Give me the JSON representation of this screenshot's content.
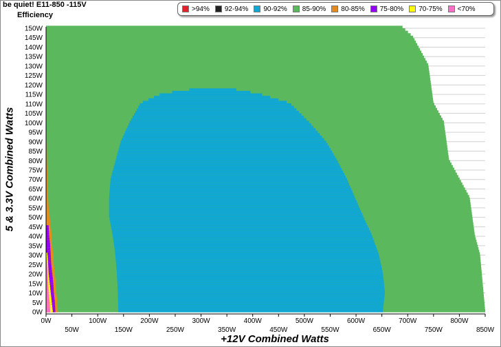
{
  "title": "be quiet! E11-850 -115V",
  "subtitle": "Efficiency",
  "chart_data": {
    "type": "heatmap",
    "xlabel": "+12V Combined Watts",
    "ylabel": "5 & 3.3V Combined Watts",
    "xlim": [
      0,
      850
    ],
    "ylim": [
      0,
      150
    ],
    "x_ticks": [
      "0W",
      "50W",
      "100W",
      "150W",
      "200W",
      "250W",
      "300W",
      "350W",
      "400W",
      "450W",
      "500W",
      "550W",
      "600W",
      "650W",
      "700W",
      "750W",
      "800W",
      "850W"
    ],
    "y_ticks": [
      "0W",
      "5W",
      "10W",
      "15W",
      "20W",
      "25W",
      "30W",
      "35W",
      "40W",
      "45W",
      "50W",
      "55W",
      "60W",
      "65W",
      "70W",
      "75W",
      "80W",
      "85W",
      "90W",
      "95W",
      "100W",
      "105W",
      "110W",
      "115W",
      "120W",
      "125W",
      "130W",
      "135W",
      "140W",
      "145W",
      "150W"
    ],
    "legend_position": "top",
    "legend": [
      {
        "label": ">94%",
        "color": "#e0242b"
      },
      {
        "label": "92-94%",
        "color": "#222222"
      },
      {
        "label": "90-92%",
        "color": "#10a7d2"
      },
      {
        "label": "85-90%",
        "color": "#5cb85c"
      },
      {
        "label": "80-85%",
        "color": "#e78a1e"
      },
      {
        "label": "75-80%",
        "color": "#9400f5"
      },
      {
        "label": "70-75%",
        "color": "#ffff0a"
      },
      {
        "label": "<70%",
        "color": "#ff6fc6"
      }
    ],
    "regions": {
      "load_limit_12v": [
        [
          0,
          850
        ],
        [
          30,
          840
        ],
        [
          40,
          830
        ],
        [
          60,
          820
        ],
        [
          70,
          800
        ],
        [
          80,
          780
        ],
        [
          100,
          770
        ],
        [
          110,
          750
        ],
        [
          130,
          740
        ],
        [
          140,
          720
        ],
        [
          145,
          710
        ],
        [
          150,
          690
        ]
      ],
      "pink_max_12v": [
        [
          0,
          8
        ],
        [
          5,
          7
        ],
        [
          10,
          5
        ],
        [
          15,
          4
        ],
        [
          20,
          3
        ],
        [
          25,
          2
        ],
        [
          30,
          0
        ]
      ],
      "yellow_max_12v": [
        [
          0,
          13
        ],
        [
          5,
          11
        ],
        [
          10,
          9
        ],
        [
          15,
          7
        ],
        [
          20,
          5
        ],
        [
          25,
          4
        ],
        [
          30,
          3
        ],
        [
          32,
          0
        ]
      ],
      "purple_max_12v": [
        [
          0,
          18
        ],
        [
          5,
          17
        ],
        [
          10,
          15
        ],
        [
          15,
          14
        ],
        [
          20,
          12
        ],
        [
          25,
          10
        ],
        [
          30,
          9
        ],
        [
          35,
          8
        ],
        [
          40,
          6
        ],
        [
          45,
          5
        ],
        [
          46,
          0
        ]
      ],
      "orange_max_12v": [
        [
          0,
          23
        ],
        [
          5,
          22
        ],
        [
          10,
          20
        ],
        [
          15,
          19
        ],
        [
          20,
          17
        ],
        [
          25,
          15
        ],
        [
          30,
          14
        ],
        [
          35,
          12
        ],
        [
          40,
          11
        ],
        [
          45,
          9
        ],
        [
          50,
          7
        ],
        [
          55,
          5
        ],
        [
          60,
          4
        ],
        [
          70,
          3
        ],
        [
          80,
          2
        ],
        [
          100,
          1
        ],
        [
          120,
          1
        ],
        [
          150,
          1
        ]
      ],
      "blue_band_12v": [
        [
          0,
          140,
          652
        ],
        [
          10,
          139,
          656
        ],
        [
          20,
          137,
          652
        ],
        [
          30,
          134,
          644
        ],
        [
          40,
          129,
          631
        ],
        [
          50,
          122,
          614
        ],
        [
          60,
          122,
          598
        ],
        [
          70,
          125,
          582
        ],
        [
          80,
          135,
          563
        ],
        [
          90,
          145,
          541
        ],
        [
          100,
          162,
          509
        ],
        [
          110,
          183,
          472
        ],
        [
          115,
          224,
          412
        ],
        [
          118,
          300,
          350
        ]
      ]
    }
  }
}
